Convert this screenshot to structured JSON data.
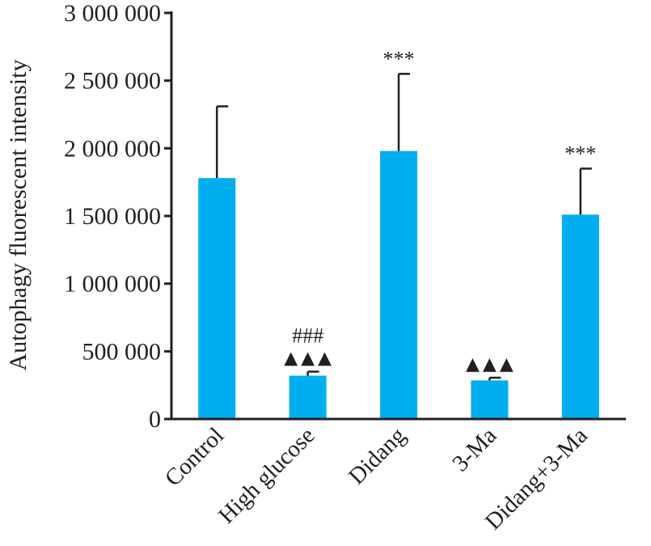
{
  "chart_data": {
    "type": "bar",
    "categories": [
      "Control",
      "High glucose",
      "Didang",
      "3-Ma",
      "Didang+3-Ma"
    ],
    "values": [
      1780000,
      320000,
      1980000,
      285000,
      1510000
    ],
    "errors": [
      530000,
      30000,
      570000,
      20000,
      340000
    ],
    "annotations": [
      {
        "top": "",
        "bottom": ""
      },
      {
        "top": "###",
        "bottom": "▲▲▲"
      },
      {
        "top": "***",
        "bottom": ""
      },
      {
        "top": "",
        "bottom": "▲▲▲"
      },
      {
        "top": "***",
        "bottom": ""
      }
    ],
    "ylabel": "Autophagy fluorescent intensity",
    "xlabel": "",
    "ylim": [
      0,
      3000000
    ],
    "yticks": [
      "0",
      "500 000",
      "1 000 000",
      "1 500 000",
      "2 000 000",
      "2 500 000",
      "3 000 000"
    ],
    "ytick_values": [
      0,
      500000,
      1000000,
      1500000,
      2000000,
      2500000,
      3000000
    ],
    "bar_color": "#00aeef",
    "grid": false
  }
}
